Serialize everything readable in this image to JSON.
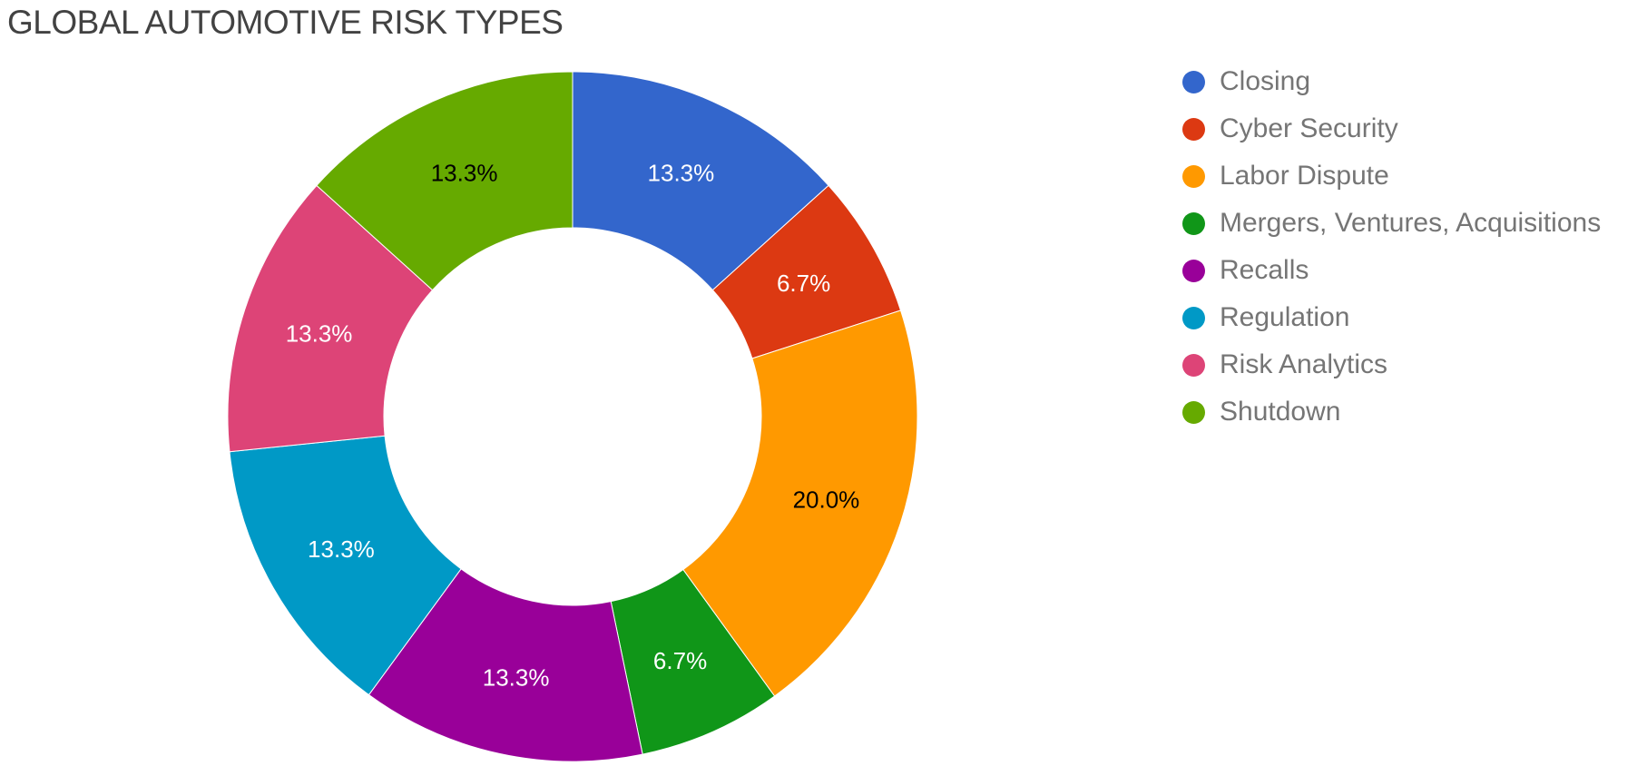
{
  "chart_data": {
    "type": "pie",
    "title": "GLOBAL AUTOMOTIVE RISK TYPES",
    "donut": true,
    "legend_position": "right",
    "categories": [
      "Closing",
      "Cyber Security",
      "Labor Dispute",
      "Mergers, Ventures, Acquisitions",
      "Recalls",
      "Regulation",
      "Risk Analytics",
      "Shutdown"
    ],
    "values": [
      13.3,
      6.7,
      20.0,
      6.7,
      13.3,
      13.3,
      13.3,
      13.3
    ],
    "labels": [
      "13.3%",
      "6.7%",
      "20.0%",
      "6.7%",
      "13.3%",
      "13.3%",
      "13.3%",
      "13.3%"
    ],
    "colors": [
      "#3366cc",
      "#dc3912",
      "#ff9900",
      "#109618",
      "#990099",
      "#0099c6",
      "#dd4477",
      "#66aa00"
    ],
    "label_colors": [
      "#ffffff",
      "#ffffff",
      "#000000",
      "#ffffff",
      "#ffffff",
      "#ffffff",
      "#ffffff",
      "#000000"
    ]
  }
}
